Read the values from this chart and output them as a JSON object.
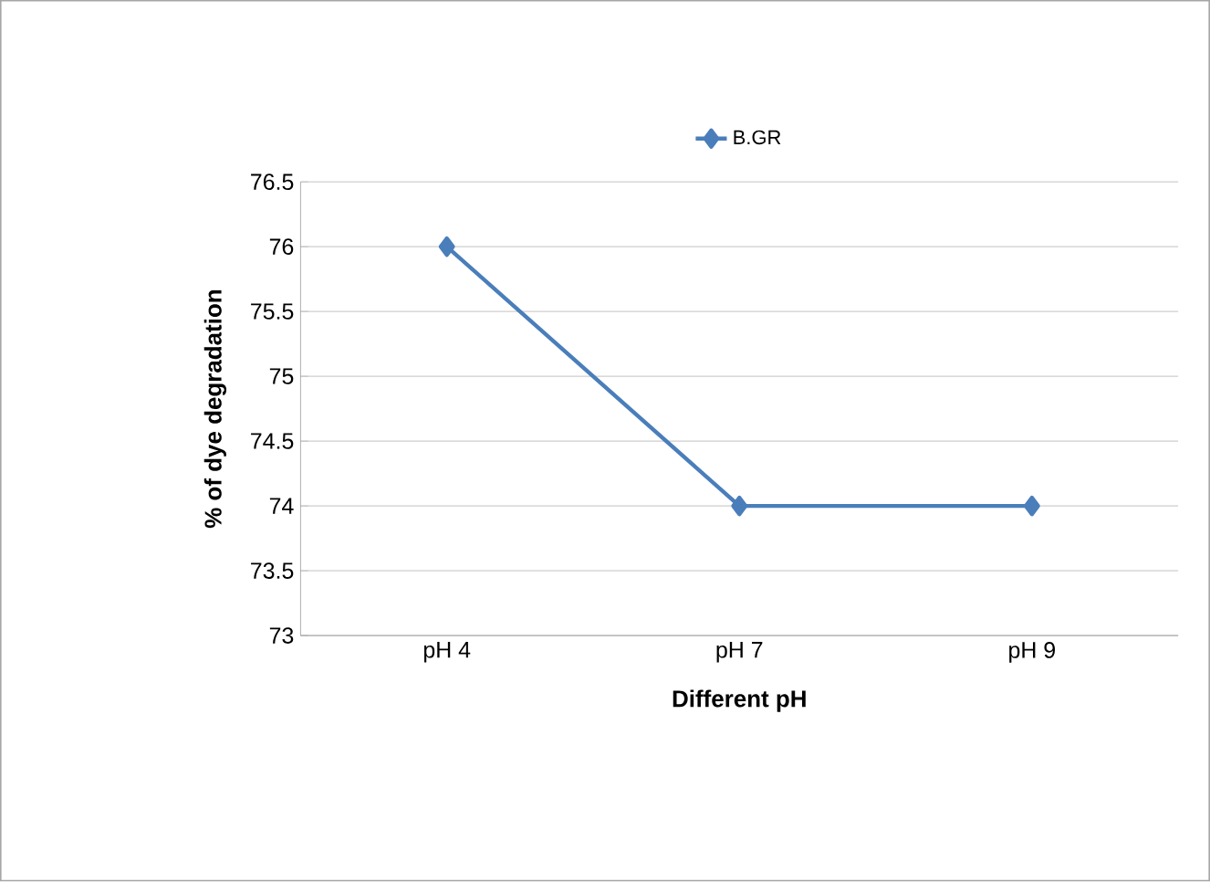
{
  "chart_data": {
    "type": "line",
    "xlabel": "Different pH",
    "ylabel": "% of dye degradation",
    "categories": [
      "pH 4",
      "pH 7",
      "pH 9"
    ],
    "series": [
      {
        "name": "B.GR",
        "color": "#4a7ebb",
        "values": [
          76,
          74,
          74
        ]
      }
    ],
    "ylim": [
      73,
      76.5
    ],
    "yticks": [
      73,
      73.5,
      74,
      74.5,
      75,
      75.5,
      76,
      76.5
    ],
    "grid": "y",
    "legend": "top",
    "marker": "diamond",
    "line_style": "solid"
  }
}
